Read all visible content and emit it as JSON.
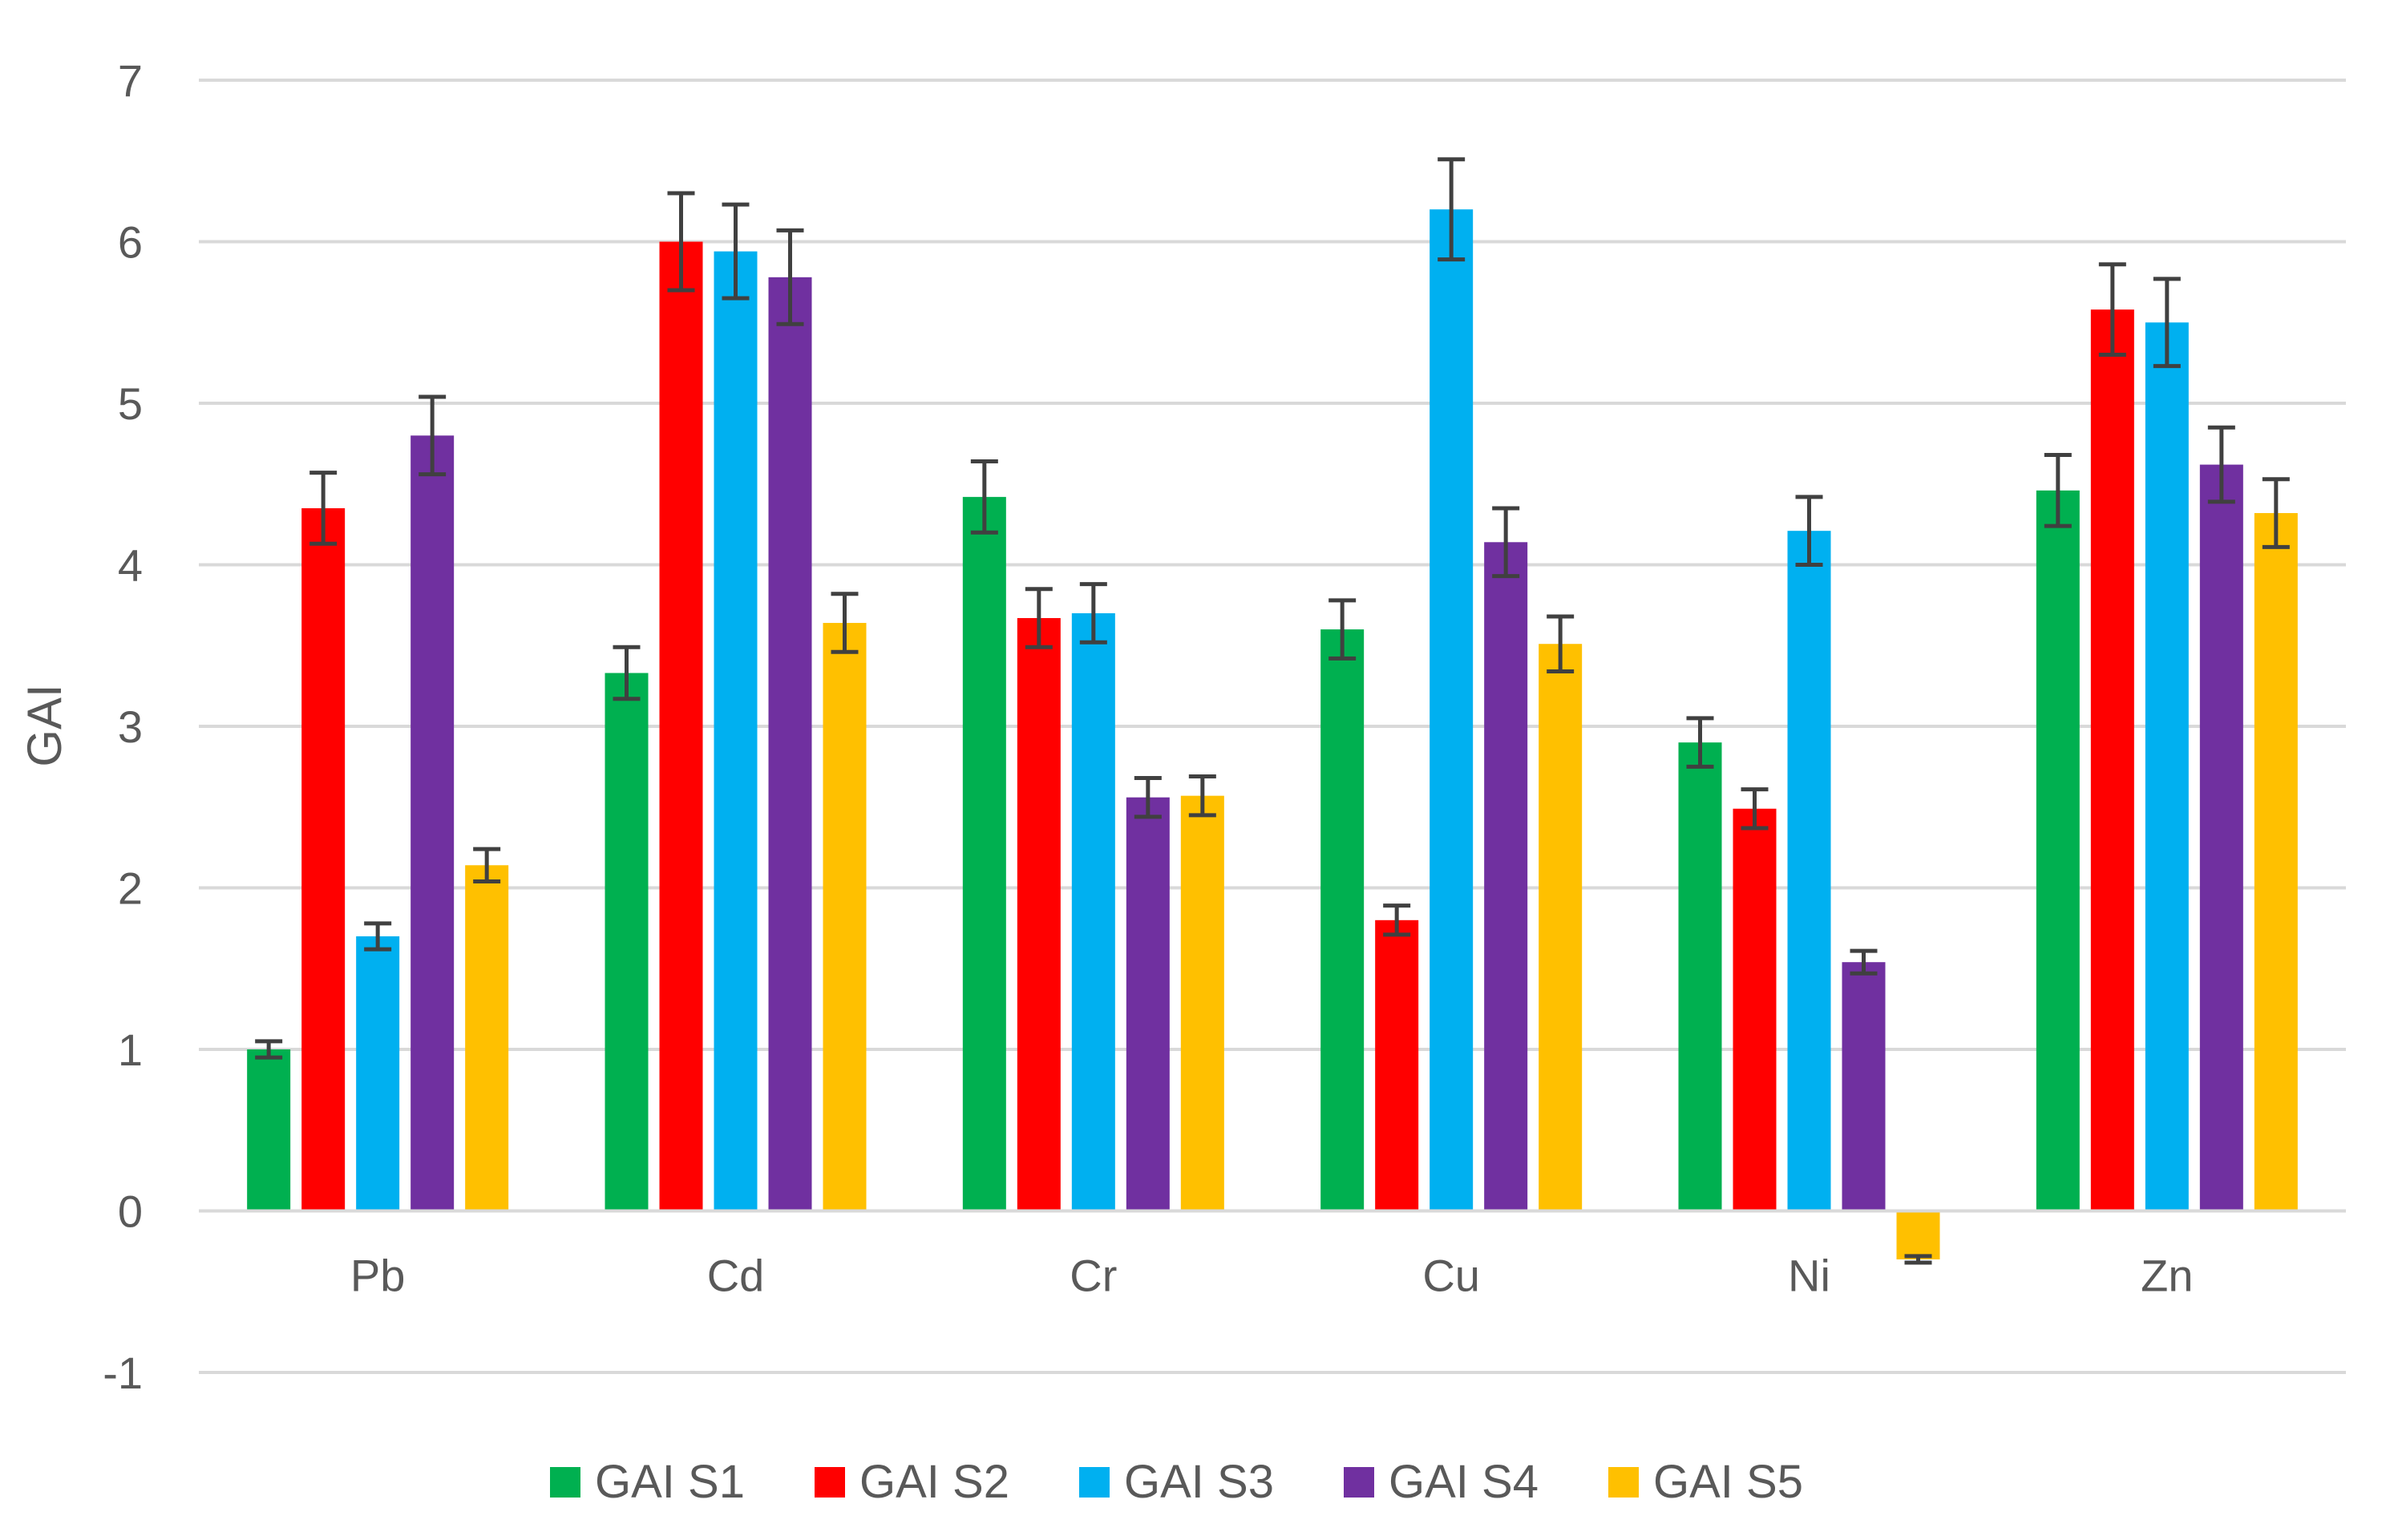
{
  "chart_data": {
    "type": "bar",
    "title": "",
    "xlabel": "",
    "ylabel": "GAI",
    "ylim": [
      -1,
      7
    ],
    "yticks": [
      -1,
      0,
      1,
      2,
      3,
      4,
      5,
      6,
      7
    ],
    "grid": true,
    "legend_position": "bottom",
    "categories": [
      "Pb",
      "Cd",
      "Cr",
      "Cu",
      "Ni",
      "Zn"
    ],
    "series": [
      {
        "name": "GAI  S1",
        "color": "#00B050",
        "values": [
          1.0,
          3.33,
          4.42,
          3.6,
          2.9,
          4.46
        ],
        "errors": [
          0.05,
          0.16,
          0.22,
          0.18,
          0.15,
          0.22
        ]
      },
      {
        "name": "GAI  S2",
        "color": "#FF0000",
        "values": [
          4.35,
          6.0,
          3.67,
          1.8,
          2.49,
          5.58
        ],
        "errors": [
          0.22,
          0.3,
          0.18,
          0.09,
          0.12,
          0.28
        ]
      },
      {
        "name": "GAI  S3",
        "color": "#00B0F0",
        "values": [
          1.7,
          5.94,
          3.7,
          6.2,
          4.21,
          5.5
        ],
        "errors": [
          0.08,
          0.29,
          0.18,
          0.31,
          0.21,
          0.27
        ]
      },
      {
        "name": "GAI  S4",
        "color": "#7030A0",
        "values": [
          4.8,
          5.78,
          2.56,
          4.14,
          1.54,
          4.62
        ],
        "errors": [
          0.24,
          0.29,
          0.12,
          0.21,
          0.07,
          0.23
        ]
      },
      {
        "name": "GAI  S5",
        "color": "#FFC000",
        "values": [
          2.14,
          3.64,
          2.57,
          3.51,
          -0.3,
          4.32
        ],
        "errors": [
          0.1,
          0.18,
          0.12,
          0.17,
          0.02,
          0.21
        ]
      }
    ],
    "error_bar_color": "#404040"
  }
}
